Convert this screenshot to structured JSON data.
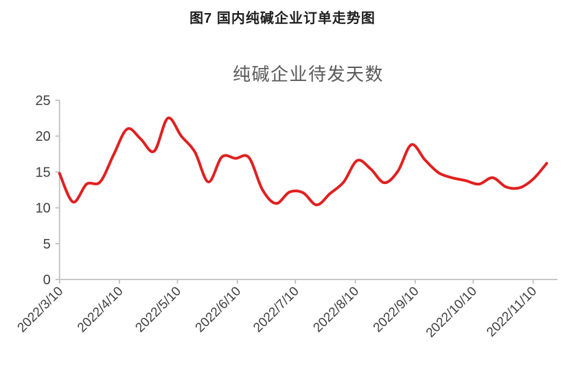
{
  "page": {
    "title": "图7 国内纯碱企业订单走势图"
  },
  "chart_data": {
    "type": "line",
    "title": "纯碱企业待发天数",
    "xlabel": "",
    "ylabel": "",
    "ylim": [
      0,
      25
    ],
    "y_ticks": [
      0,
      5,
      10,
      15,
      20,
      25
    ],
    "x_tick_labels": [
      "2022/3/10",
      "2022/4/10",
      "2022/5/10",
      "2022/6/10",
      "2022/7/10",
      "2022/8/10",
      "2022/9/10",
      "2022/10/10",
      "2022/11/10"
    ],
    "grid": false,
    "legend": "none",
    "line_smooth": true,
    "series": [
      {
        "name": "纯碱企业待发天数",
        "color": "#e02020",
        "x": [
          "2022/3/10",
          "2022/3/17",
          "2022/3/24",
          "2022/3/31",
          "2022/4/7",
          "2022/4/14",
          "2022/4/21",
          "2022/4/28",
          "2022/5/5",
          "2022/5/12",
          "2022/5/19",
          "2022/5/26",
          "2022/6/2",
          "2022/6/9",
          "2022/6/16",
          "2022/6/23",
          "2022/6/30",
          "2022/7/7",
          "2022/7/14",
          "2022/7/21",
          "2022/7/28",
          "2022/8/4",
          "2022/8/11",
          "2022/8/18",
          "2022/8/25",
          "2022/9/1",
          "2022/9/8",
          "2022/9/15",
          "2022/9/22",
          "2022/9/29",
          "2022/10/6",
          "2022/10/13",
          "2022/10/20",
          "2022/10/27",
          "2022/11/3",
          "2022/11/10",
          "2022/11/17"
        ],
        "values": [
          14.8,
          10.8,
          13.3,
          13.6,
          17.4,
          21.0,
          19.6,
          17.9,
          22.5,
          20.0,
          17.8,
          13.6,
          17.1,
          16.9,
          17.0,
          12.5,
          10.6,
          12.2,
          12.1,
          10.4,
          12.0,
          13.6,
          16.6,
          15.4,
          13.5,
          15.1,
          18.8,
          16.7,
          14.9,
          14.2,
          13.8,
          13.3,
          14.2,
          12.9,
          12.8,
          14.0,
          16.2
        ]
      }
    ],
    "colors": {
      "line": "#e02020",
      "axis": "#bfbfbf",
      "tick_label": "#404040",
      "chart_title": "#595959",
      "figure_title": "#1f1f1f"
    }
  }
}
